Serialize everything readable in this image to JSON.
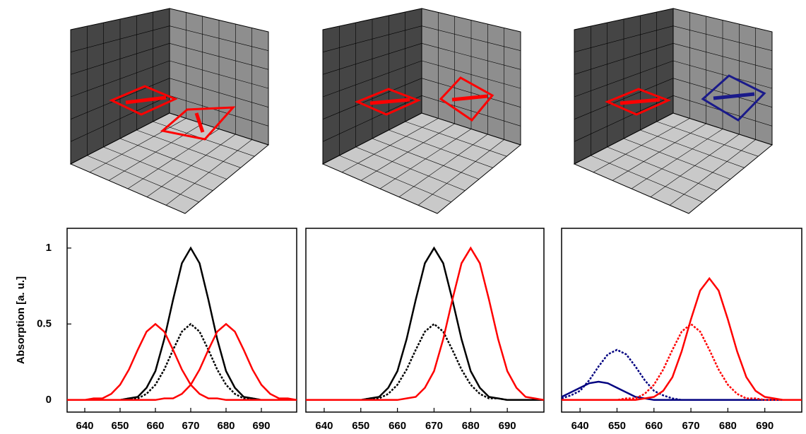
{
  "chart_data": [
    {
      "type": "line",
      "y_label": "Absorption [a. u.]",
      "x": [
        635,
        637.5,
        640,
        642.5,
        645,
        647.5,
        650,
        652.5,
        655,
        657.5,
        660,
        662.5,
        665,
        667.5,
        670,
        672.5,
        675,
        677.5,
        680,
        682.5,
        685,
        687.5,
        690,
        692.5,
        695,
        697.5,
        700
      ],
      "xlim": [
        635,
        700
      ],
      "xticks": [
        640,
        650,
        660,
        670,
        680,
        690
      ],
      "ylim": [
        -0.08,
        1.13
      ],
      "yticks": [
        0,
        0.5,
        1
      ],
      "series": [
        {
          "color": "#000000",
          "style": "solid",
          "values": [
            0,
            0,
            0,
            0,
            0,
            0,
            0,
            0.01,
            0.02,
            0.08,
            0.19,
            0.4,
            0.66,
            0.9,
            1,
            0.9,
            0.66,
            0.4,
            0.19,
            0.08,
            0.02,
            0.01,
            0,
            0,
            0,
            0,
            0
          ]
        },
        {
          "color": "#000000",
          "style": "dotted",
          "values": [
            0,
            0,
            0,
            0,
            0,
            0,
            0,
            0.01,
            0.01,
            0.04,
            0.1,
            0.2,
            0.33,
            0.45,
            0.5,
            0.45,
            0.33,
            0.2,
            0.1,
            0.04,
            0.01,
            0.01,
            0,
            0,
            0,
            0,
            0
          ]
        },
        {
          "color": "#ff0000",
          "style": "solid",
          "values": [
            0,
            0,
            0,
            0.01,
            0.01,
            0.04,
            0.1,
            0.2,
            0.33,
            0.45,
            0.5,
            0.45,
            0.33,
            0.2,
            0.1,
            0.04,
            0.01,
            0.01,
            0,
            0,
            0,
            0,
            0,
            0,
            0,
            0,
            0
          ]
        },
        {
          "color": "#ff0000",
          "style": "solid",
          "values": [
            0,
            0,
            0,
            0,
            0,
            0,
            0,
            0,
            0,
            0,
            0,
            0.01,
            0.01,
            0.04,
            0.1,
            0.2,
            0.33,
            0.45,
            0.5,
            0.45,
            0.33,
            0.2,
            0.1,
            0.04,
            0.01,
            0.01,
            0
          ]
        }
      ]
    },
    {
      "type": "line",
      "x": [
        635,
        637.5,
        640,
        642.5,
        645,
        647.5,
        650,
        652.5,
        655,
        657.5,
        660,
        662.5,
        665,
        667.5,
        670,
        672.5,
        675,
        677.5,
        680,
        682.5,
        685,
        687.5,
        690,
        692.5,
        695,
        697.5,
        700
      ],
      "xlim": [
        635,
        700
      ],
      "xticks": [
        640,
        650,
        660,
        670,
        680,
        690
      ],
      "ylim": [
        -0.08,
        1.13
      ],
      "series": [
        {
          "color": "#000000",
          "style": "solid",
          "values": [
            0,
            0,
            0,
            0,
            0,
            0,
            0,
            0.01,
            0.02,
            0.08,
            0.19,
            0.4,
            0.66,
            0.9,
            1,
            0.9,
            0.66,
            0.4,
            0.19,
            0.08,
            0.02,
            0.01,
            0,
            0,
            0,
            0,
            0
          ]
        },
        {
          "color": "#000000",
          "style": "dotted",
          "values": [
            0,
            0,
            0,
            0,
            0,
            0,
            0,
            0.01,
            0.01,
            0.04,
            0.1,
            0.2,
            0.33,
            0.45,
            0.5,
            0.45,
            0.33,
            0.2,
            0.1,
            0.04,
            0.01,
            0.01,
            0,
            0,
            0,
            0,
            0
          ]
        },
        {
          "color": "#ff0000",
          "style": "solid",
          "values": [
            0,
            0,
            0,
            0,
            0,
            0,
            0,
            0,
            0,
            0,
            0,
            0.01,
            0.02,
            0.08,
            0.19,
            0.4,
            0.66,
            0.9,
            1,
            0.9,
            0.66,
            0.4,
            0.19,
            0.08,
            0.02,
            0.01,
            0
          ]
        }
      ]
    },
    {
      "type": "line",
      "x": [
        635,
        637.5,
        640,
        642.5,
        645,
        647.5,
        650,
        652.5,
        655,
        657.5,
        660,
        662.5,
        665,
        667.5,
        670,
        672.5,
        675,
        677.5,
        680,
        682.5,
        685,
        687.5,
        690,
        692.5,
        695,
        697.5,
        700
      ],
      "xlim": [
        635,
        700
      ],
      "xticks": [
        640,
        650,
        660,
        670,
        680,
        690
      ],
      "ylim": [
        -0.08,
        1.13
      ],
      "series": [
        {
          "color": "#000080",
          "style": "solid",
          "values": [
            0.02,
            0.05,
            0.08,
            0.11,
            0.12,
            0.11,
            0.08,
            0.05,
            0.02,
            0.01,
            0,
            0,
            0,
            0,
            0,
            0,
            0,
            0,
            0,
            0,
            0,
            0,
            0,
            0,
            0,
            0,
            0
          ]
        },
        {
          "color": "#000080",
          "style": "dotted",
          "values": [
            0.01,
            0.03,
            0.06,
            0.13,
            0.22,
            0.3,
            0.33,
            0.3,
            0.22,
            0.13,
            0.06,
            0.03,
            0.01,
            0,
            0,
            0,
            0,
            0,
            0,
            0,
            0,
            0,
            0,
            0,
            0,
            0,
            0
          ]
        },
        {
          "color": "#ff0000",
          "style": "dotted",
          "values": [
            0,
            0,
            0,
            0,
            0,
            0,
            0,
            0.01,
            0.01,
            0.04,
            0.1,
            0.2,
            0.33,
            0.45,
            0.5,
            0.45,
            0.33,
            0.2,
            0.1,
            0.04,
            0.01,
            0.01,
            0,
            0,
            0,
            0,
            0
          ]
        },
        {
          "color": "#ff0000",
          "style": "solid",
          "values": [
            0,
            0,
            0,
            0,
            0,
            0,
            0,
            0,
            0,
            0.01,
            0.02,
            0.06,
            0.15,
            0.32,
            0.53,
            0.72,
            0.8,
            0.72,
            0.53,
            0.32,
            0.15,
            0.06,
            0.02,
            0.01,
            0,
            0,
            0
          ]
        }
      ]
    }
  ]
}
